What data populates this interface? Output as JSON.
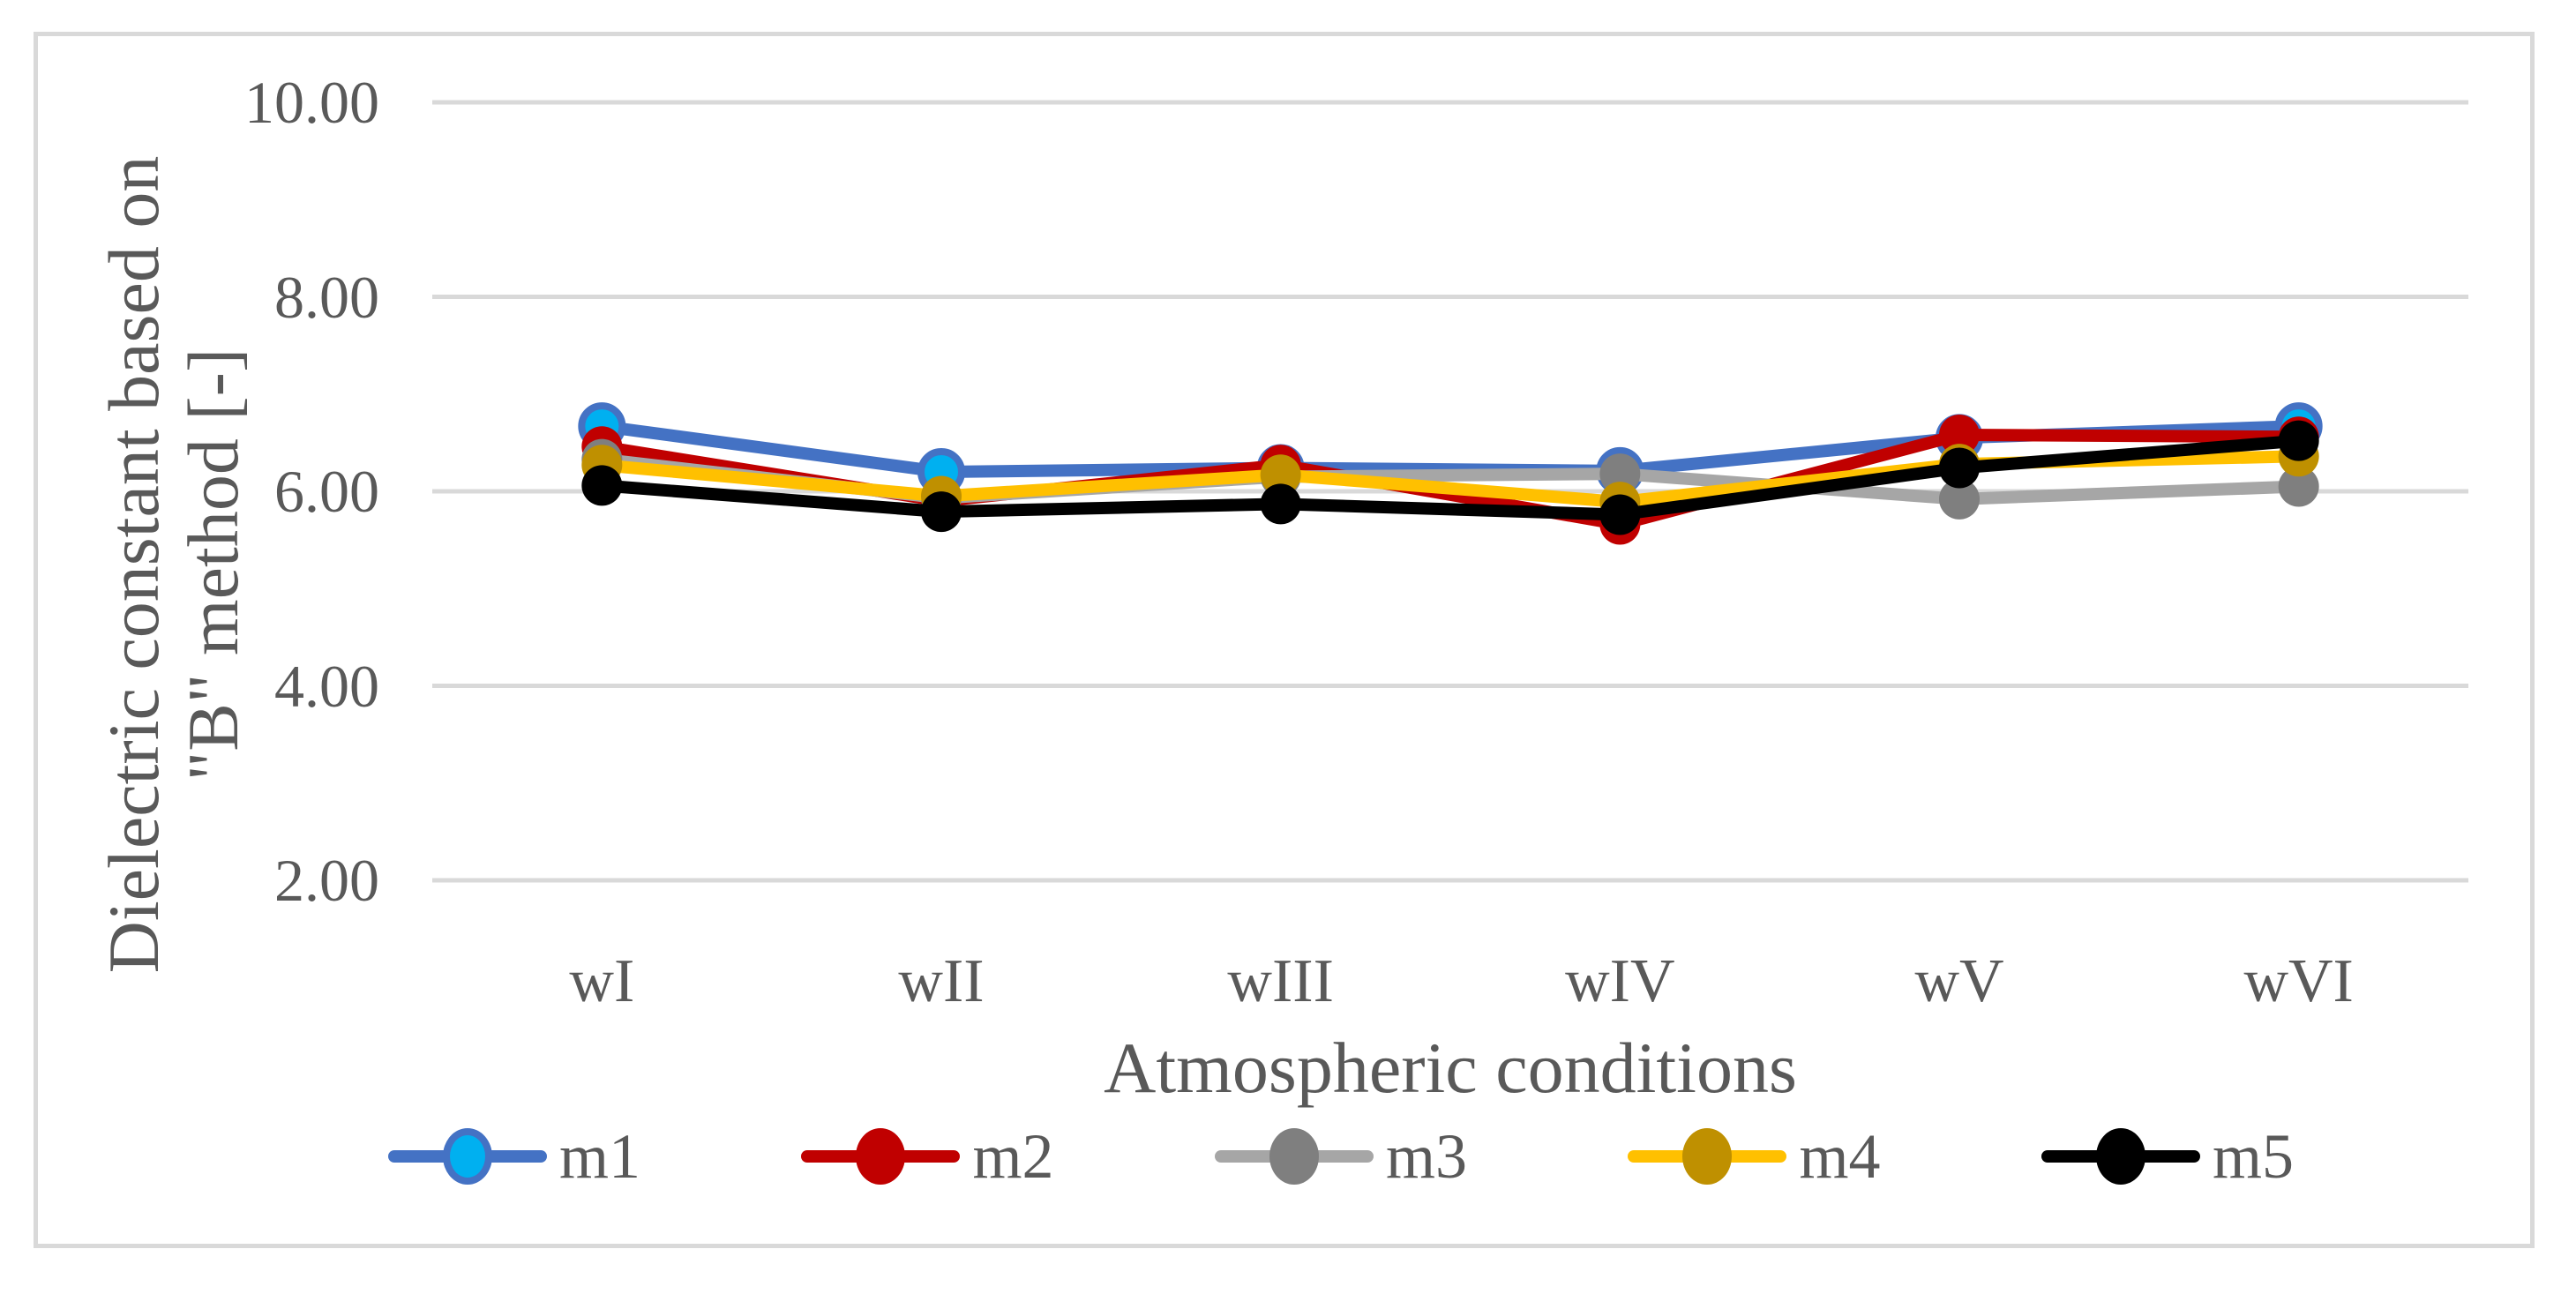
{
  "chart_data": {
    "type": "line",
    "categories": [
      "wI",
      "wII",
      "wIII",
      "wIV",
      "wV",
      "wVI"
    ],
    "series": [
      {
        "name": "m1",
        "line_color": "#4472C4",
        "marker_fill": "#00B0F0",
        "marker_border": "#4472C4",
        "values": [
          6.67,
          6.2,
          6.24,
          6.21,
          6.55,
          6.67
        ]
      },
      {
        "name": "m2",
        "line_color": "#C00000",
        "marker_fill": "#C00000",
        "marker_border": "#C00000",
        "values": [
          6.46,
          5.9,
          6.27,
          5.66,
          6.58,
          6.56
        ]
      },
      {
        "name": "m3",
        "line_color": "#A6A6A6",
        "marker_fill": "#7F7F7F",
        "marker_border": "#7F7F7F",
        "values": [
          6.33,
          5.93,
          6.15,
          6.18,
          5.92,
          6.05
        ]
      },
      {
        "name": "m4",
        "line_color": "#FFC000",
        "marker_fill": "#BF9000",
        "marker_border": "#BF9000",
        "values": [
          6.27,
          5.95,
          6.17,
          5.89,
          6.28,
          6.36
        ]
      },
      {
        "name": "m5",
        "line_color": "#000000",
        "marker_fill": "#000000",
        "marker_border": "#000000",
        "values": [
          6.06,
          5.79,
          5.87,
          5.76,
          6.24,
          6.52
        ]
      }
    ],
    "xlabel": "Atmospheric conditions",
    "ylabel_line1": "Dielectric constant based on",
    "ylabel_line2": "\"B\" method [-]",
    "y_ticks": [
      {
        "label": "10.00",
        "value": 10
      },
      {
        "label": "8.00",
        "value": 8
      },
      {
        "label": "6.00",
        "value": 6
      },
      {
        "label": "4.00",
        "value": 4
      },
      {
        "label": "2.00",
        "value": 2
      }
    ],
    "ylim": [
      2,
      10
    ],
    "grid": true,
    "legend_position": "bottom",
    "colors": {
      "grid_color": "#D9D9D9",
      "frame_color": "#D9D9D9",
      "text_color": "#595959",
      "background": "#FFFFFF"
    }
  }
}
